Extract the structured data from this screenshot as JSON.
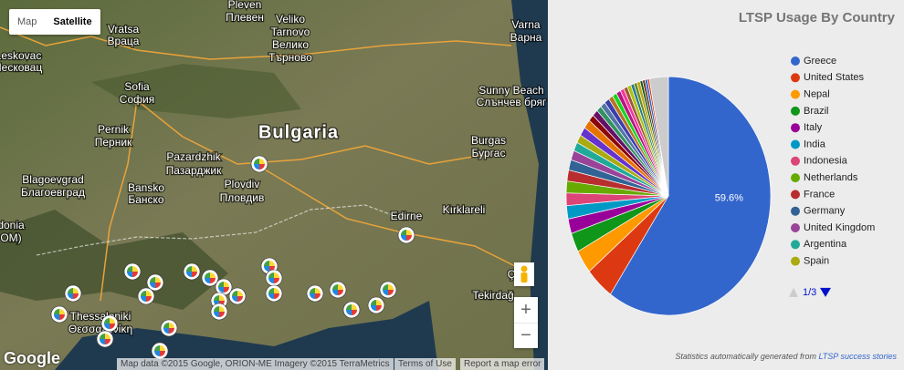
{
  "map": {
    "controls": {
      "map": "Map",
      "satellite": "Satellite",
      "zoom_in": "+",
      "zoom_out": "−"
    },
    "logo": "Google",
    "attribution": "Map data ©2015 Google, ORION-ME Imagery ©2015 TerraMetrics",
    "terms": "Terms of Use",
    "report": "Report a map error",
    "country": "Bulgaria",
    "places": [
      "Pleven",
      "Плевен",
      "Vratsa",
      "Враца",
      "Veliko",
      "Tarnovo",
      "Велико",
      "Търново",
      "Varna",
      "Варна",
      "Leskovac",
      "Лесковац",
      "Sofia",
      "София",
      "Sunny Beach",
      "Слънчев бряг",
      "Pernik",
      "Перник",
      "Pazardzhik",
      "Пазарджик",
      "Burgas",
      "Бургас",
      "Plovdiv",
      "Пловдив",
      "Blagoevgrad",
      "Благоевград",
      "Bansko",
      "Банско",
      "Edirne",
      "Kırklareli",
      "donia",
      "OM)",
      "Tekirdağ",
      "Thessaloniki",
      "Θεσσαλονίκη",
      "Ç"
    ]
  },
  "chart_data": {
    "type": "pie",
    "title": "LTSP Usage By Country",
    "categories": [
      "Greece",
      "United States",
      "Nepal",
      "Brazil",
      "Italy",
      "India",
      "Indonesia",
      "Netherlands",
      "France",
      "Germany",
      "United Kingdom",
      "Argentina",
      "Spain",
      null,
      null,
      null,
      null,
      null,
      null,
      null,
      null,
      null,
      null,
      null,
      null,
      null,
      null,
      null,
      null,
      null,
      null,
      null,
      null,
      null
    ],
    "values": [
      59.6,
      4.5,
      3.2,
      2.6,
      2.0,
      1.8,
      1.7,
      1.6,
      1.5,
      1.4,
      1.3,
      1.2,
      1.1,
      1.2,
      1.2,
      0.9,
      0.9,
      0.8,
      0.8,
      0.8,
      0.7,
      0.7,
      0.7,
      0.6,
      0.6,
      0.6,
      0.5,
      0.5,
      0.5,
      0.4,
      0.4,
      0.4,
      0.3,
      3.0
    ],
    "value_labels": [
      "59.6%",
      null,
      null,
      null,
      null,
      null,
      null,
      null,
      null,
      null,
      null,
      null,
      null,
      null,
      null,
      null,
      null,
      null,
      null,
      null,
      null,
      null,
      null,
      null,
      null,
      null,
      null,
      null,
      null,
      null,
      null,
      null,
      null,
      null
    ],
    "colors": [
      "#3366cc",
      "#dc3912",
      "#ff9900",
      "#109618",
      "#990099",
      "#0099c6",
      "#dd4477",
      "#66aa00",
      "#b82e2e",
      "#316395",
      "#994499",
      "#22aa99",
      "#aaaa11",
      "#6633cc",
      "#e67300",
      "#8b0707",
      "#651067",
      "#329262",
      "#5574a6",
      "#3b3eac",
      "#b77322",
      "#16d620",
      "#b91383",
      "#f4359e",
      "#9c5935",
      "#a9c413",
      "#2a778d",
      "#668d1c",
      "#bea413",
      "#0c5922",
      "#743411",
      "#3366cc",
      "#dc3912",
      "#cccccc"
    ],
    "legend_page": "1/3",
    "footer": "Statistics automatically generated from",
    "footer_link": "LTSP success stories"
  }
}
